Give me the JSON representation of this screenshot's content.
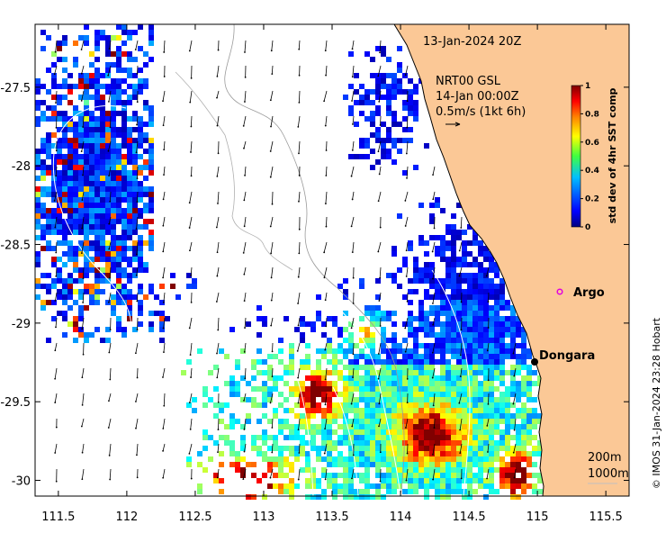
{
  "map": {
    "timestamp": "13-Jan-2024 20Z",
    "current_model": "NRT00 GSL",
    "current_time": "14-Jan 00:00Z",
    "current_scale": "0.5m/s (1kt 6h)",
    "contours": [
      "200m",
      "1000m"
    ],
    "credit": "© IMOS 31-Jan-2024 23:28 Hobart",
    "places": {
      "argo": "Argo",
      "dongara": "Dongara"
    },
    "x_ticks": [
      "111.5",
      "112",
      "112.5",
      "113",
      "113.5",
      "114",
      "114.5",
      "115",
      "115.5"
    ],
    "y_ticks": [
      "-27.5",
      "-28",
      "-28.5",
      "-29",
      "-29.5",
      "-30"
    ],
    "extent": {
      "lon": [
        111.33,
        115.67
      ],
      "lat": [
        -30.1,
        -27.1
      ]
    },
    "colorbar": {
      "label": "std dev of 4hr SST comp",
      "ticks": [
        "0",
        "0.2",
        "0.4",
        "0.6",
        "0.8",
        "1"
      ],
      "min": 0,
      "max": 1
    },
    "colors": {
      "land": "#fbc896",
      "coast": "#000000",
      "marker_argo": "#e000e0",
      "marker_dongara": "#000000"
    }
  }
}
